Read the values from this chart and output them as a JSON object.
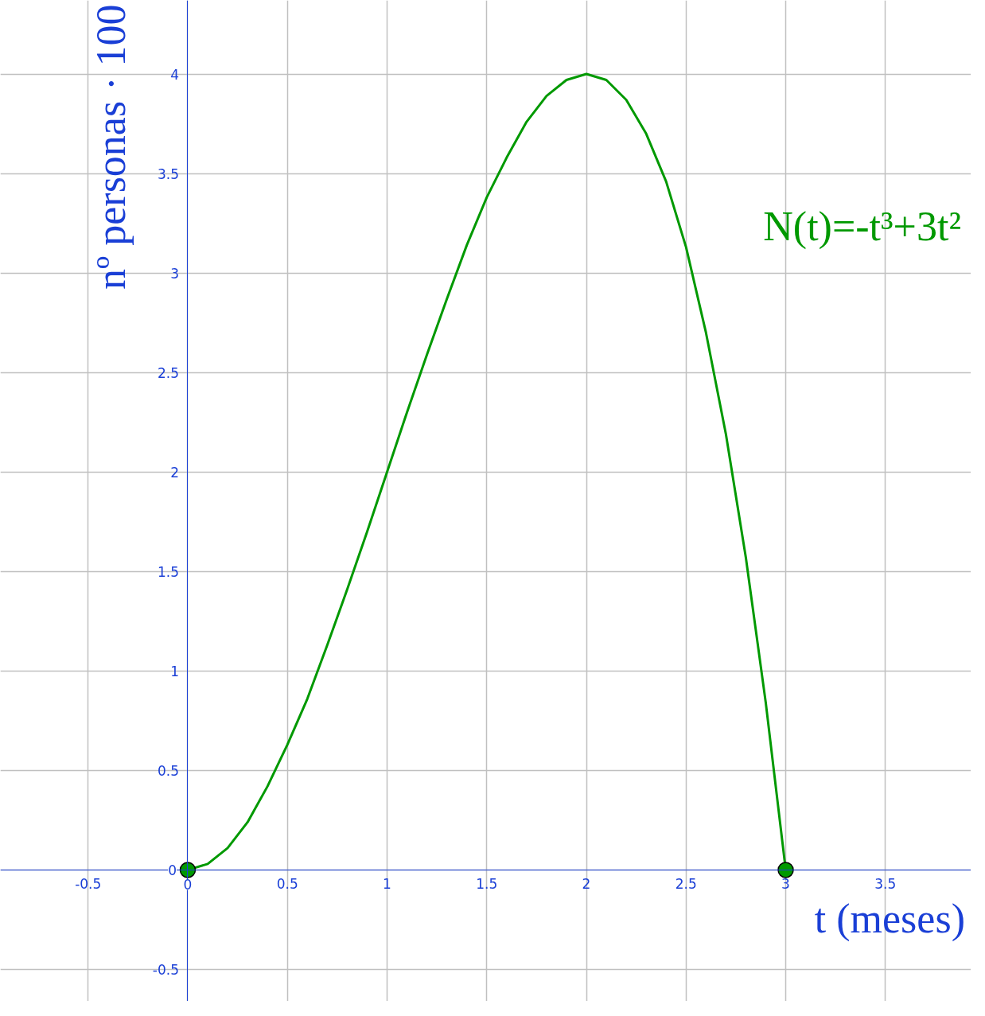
{
  "chart_data": {
    "type": "line",
    "xlabel": "t (meses)",
    "ylabel": "nº personas · 100",
    "xlim": [
      -0.94,
      3.93
    ],
    "ylim": [
      -0.66,
      4.37
    ],
    "xticks": [
      -0.5,
      0,
      0.5,
      1,
      1.5,
      2,
      2.5,
      3,
      3.5
    ],
    "yticks": [
      -0.5,
      0,
      0.5,
      1,
      1.5,
      2,
      2.5,
      3,
      3.5,
      4
    ],
    "grid": true,
    "series": [
      {
        "color": "#009900",
        "marker": "none",
        "line_style": "solid",
        "x": [
          0,
          0.1,
          0.2,
          0.3,
          0.4,
          0.5,
          0.6,
          0.7,
          0.8,
          0.9,
          1,
          1.1,
          1.2,
          1.3,
          1.4,
          1.5,
          1.6,
          1.7,
          1.8,
          1.9,
          2,
          2.1,
          2.2,
          2.3,
          2.4,
          2.5,
          2.6,
          2.7,
          2.8,
          2.9,
          3
        ],
        "values": [
          0,
          0.03,
          0.11,
          0.24,
          0.42,
          0.63,
          0.86,
          1.13,
          1.41,
          1.7,
          2,
          2.3,
          2.59,
          2.87,
          3.14,
          3.38,
          3.58,
          3.76,
          3.89,
          3.97,
          4,
          3.97,
          3.87,
          3.7,
          3.46,
          3.13,
          2.7,
          2.19,
          1.57,
          0.84,
          0
        ]
      },
      {
        "type": "scatter",
        "color": "#009900",
        "marker": "circle",
        "x": [
          0,
          3
        ],
        "values": [
          0,
          0
        ]
      }
    ],
    "annotations": [
      "N(t)=-t³+3t²"
    ]
  }
}
